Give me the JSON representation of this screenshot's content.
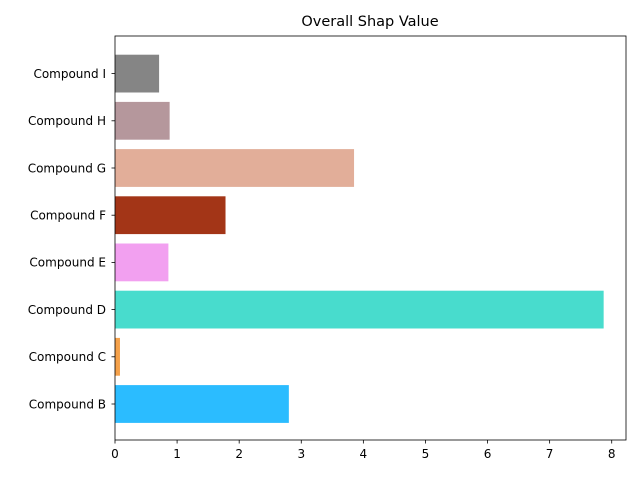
{
  "chart_data": {
    "type": "bar",
    "orientation": "horizontal",
    "title": "Overall Shap Value",
    "xlabel": "",
    "ylabel": "",
    "categories": [
      "Compound B",
      "Compound C",
      "Compound D",
      "Compound E",
      "Compound F",
      "Compound G",
      "Compound H",
      "Compound I"
    ],
    "values": [
      2.8,
      0.08,
      7.87,
      0.86,
      1.78,
      3.85,
      0.88,
      0.71
    ],
    "colors": [
      "#2bbcff",
      "#f5a14a",
      "#48dccd",
      "#f2a0f0",
      "#a33517",
      "#e2ae99",
      "#b5979c",
      "#858585"
    ],
    "xlim": [
      0,
      8.23
    ],
    "xticks": [
      0,
      1,
      2,
      3,
      4,
      5,
      6,
      7,
      8
    ],
    "grid": false,
    "legend": "none"
  }
}
